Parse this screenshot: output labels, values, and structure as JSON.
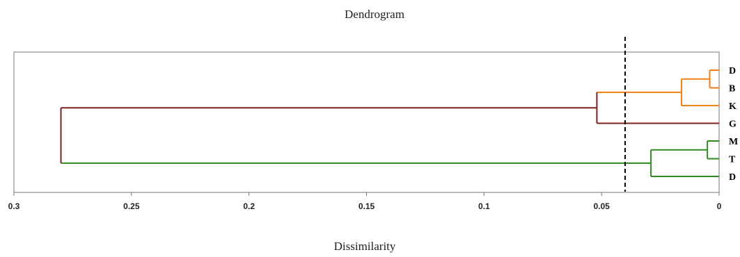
{
  "chart_data": {
    "type": "dendrogram",
    "title": "Dendrogram",
    "xlabel": "Dissimilarity",
    "ylabel": "",
    "xlim": [
      0.3,
      0
    ],
    "xticks": [
      "0.3",
      "0.25",
      "0.2",
      "0.15",
      "0.1",
      "0.05",
      "0"
    ],
    "xtick_values": [
      0.3,
      0.25,
      0.2,
      0.15,
      0.1,
      0.05,
      0
    ],
    "cutoff": 0.04,
    "leaves": [
      "D",
      "B",
      "K",
      "G",
      "M",
      "T",
      "D"
    ],
    "merges": [
      {
        "id": "c1",
        "children": [
          "L0",
          "L1"
        ],
        "height": 0.004,
        "cluster": 1
      },
      {
        "id": "c2",
        "children": [
          "c1",
          "L2"
        ],
        "height": 0.016,
        "cluster": 1
      },
      {
        "id": "c3",
        "children": [
          "c2",
          "L3"
        ],
        "height": 0.052,
        "cluster": 0
      },
      {
        "id": "c4",
        "children": [
          "L4",
          "L5"
        ],
        "height": 0.005,
        "cluster": 2
      },
      {
        "id": "c5",
        "children": [
          "c4",
          "L6"
        ],
        "height": 0.029,
        "cluster": 2
      },
      {
        "id": "c6",
        "children": [
          "c3",
          "c5"
        ],
        "height": 0.28,
        "cluster": 0
      }
    ],
    "leaf_clusters": [
      1,
      1,
      1,
      0,
      2,
      2,
      2
    ],
    "cluster_colors": [
      "#7f1f1f",
      "#f07f16",
      "#2f8a1f"
    ],
    "axis_color": "#777777",
    "cutoff_color": "#000000"
  }
}
